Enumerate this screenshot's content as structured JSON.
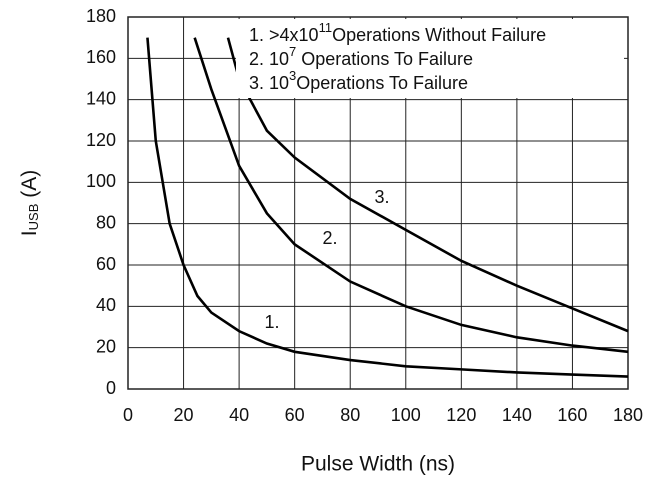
{
  "chart_data": {
    "type": "line",
    "x_label": "Pulse Width (ns)",
    "y_label": {
      "main": "I",
      "sub": "USB",
      "suffix": " (A)"
    },
    "legend": [
      {
        "prefix": "1. >4x10",
        "sup": "11",
        "suffix": "Operations Without Failure"
      },
      {
        "prefix": "2. 10",
        "sup": "7",
        "suffix": " Operations To Failure"
      },
      {
        "prefix": "3. 10",
        "sup": "3",
        "suffix": "Operations To Failure"
      }
    ],
    "series": [
      {
        "name": "1.",
        "color": "#000000",
        "x": [
          7,
          10,
          15,
          20,
          25,
          30,
          40,
          50,
          60,
          80,
          100,
          120,
          140,
          160,
          180
        ],
        "values": [
          170,
          120,
          80,
          60,
          45,
          37,
          28,
          22,
          18,
          14,
          11,
          9.5,
          8,
          7,
          6
        ]
      },
      {
        "name": "2.",
        "color": "#000000",
        "x": [
          24,
          30,
          40,
          50,
          60,
          80,
          100,
          120,
          140,
          160,
          180
        ],
        "values": [
          170,
          145,
          108,
          85,
          70,
          52,
          40,
          31,
          25,
          21,
          18
        ]
      },
      {
        "name": "3.",
        "color": "#000000",
        "x": [
          36,
          40,
          50,
          60,
          80,
          100,
          120,
          140,
          160,
          180
        ],
        "values": [
          170,
          150,
          125,
          112,
          92,
          77,
          62,
          50,
          39,
          28
        ]
      }
    ],
    "xlim": [
      0,
      180
    ],
    "xticks": [
      0,
      20,
      40,
      60,
      80,
      100,
      120,
      140,
      160,
      180
    ],
    "ylim": [
      0,
      180
    ],
    "yticks": [
      0,
      20,
      40,
      60,
      80,
      100,
      120,
      140,
      160,
      180
    ],
    "grid": true
  }
}
